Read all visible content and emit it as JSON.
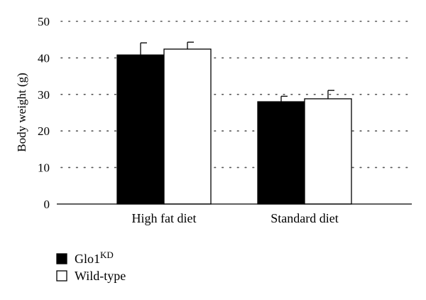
{
  "chart_data": {
    "type": "bar",
    "title": "",
    "xlabel": "",
    "ylabel": "Body weight (g)",
    "ylim": [
      0,
      50
    ],
    "yticks": [
      0,
      10,
      20,
      30,
      40,
      50
    ],
    "grid": "horizontal dotted",
    "legend_position": "bottom-left",
    "categories": [
      "High fat diet",
      "Standard diet"
    ],
    "series": [
      {
        "name": "Glo1KD",
        "name_base": "Glo1",
        "name_superscript": "KD",
        "values": [
          40.8,
          28.0
        ],
        "error": [
          3.3,
          1.5
        ],
        "fill": "#000000"
      },
      {
        "name": "Wild-type",
        "values": [
          42.4,
          28.8
        ],
        "error": [
          1.9,
          2.3
        ],
        "fill": "#ffffff"
      }
    ]
  },
  "colors": {
    "axis": "#000000",
    "grid": "#555555",
    "background": "#ffffff"
  }
}
